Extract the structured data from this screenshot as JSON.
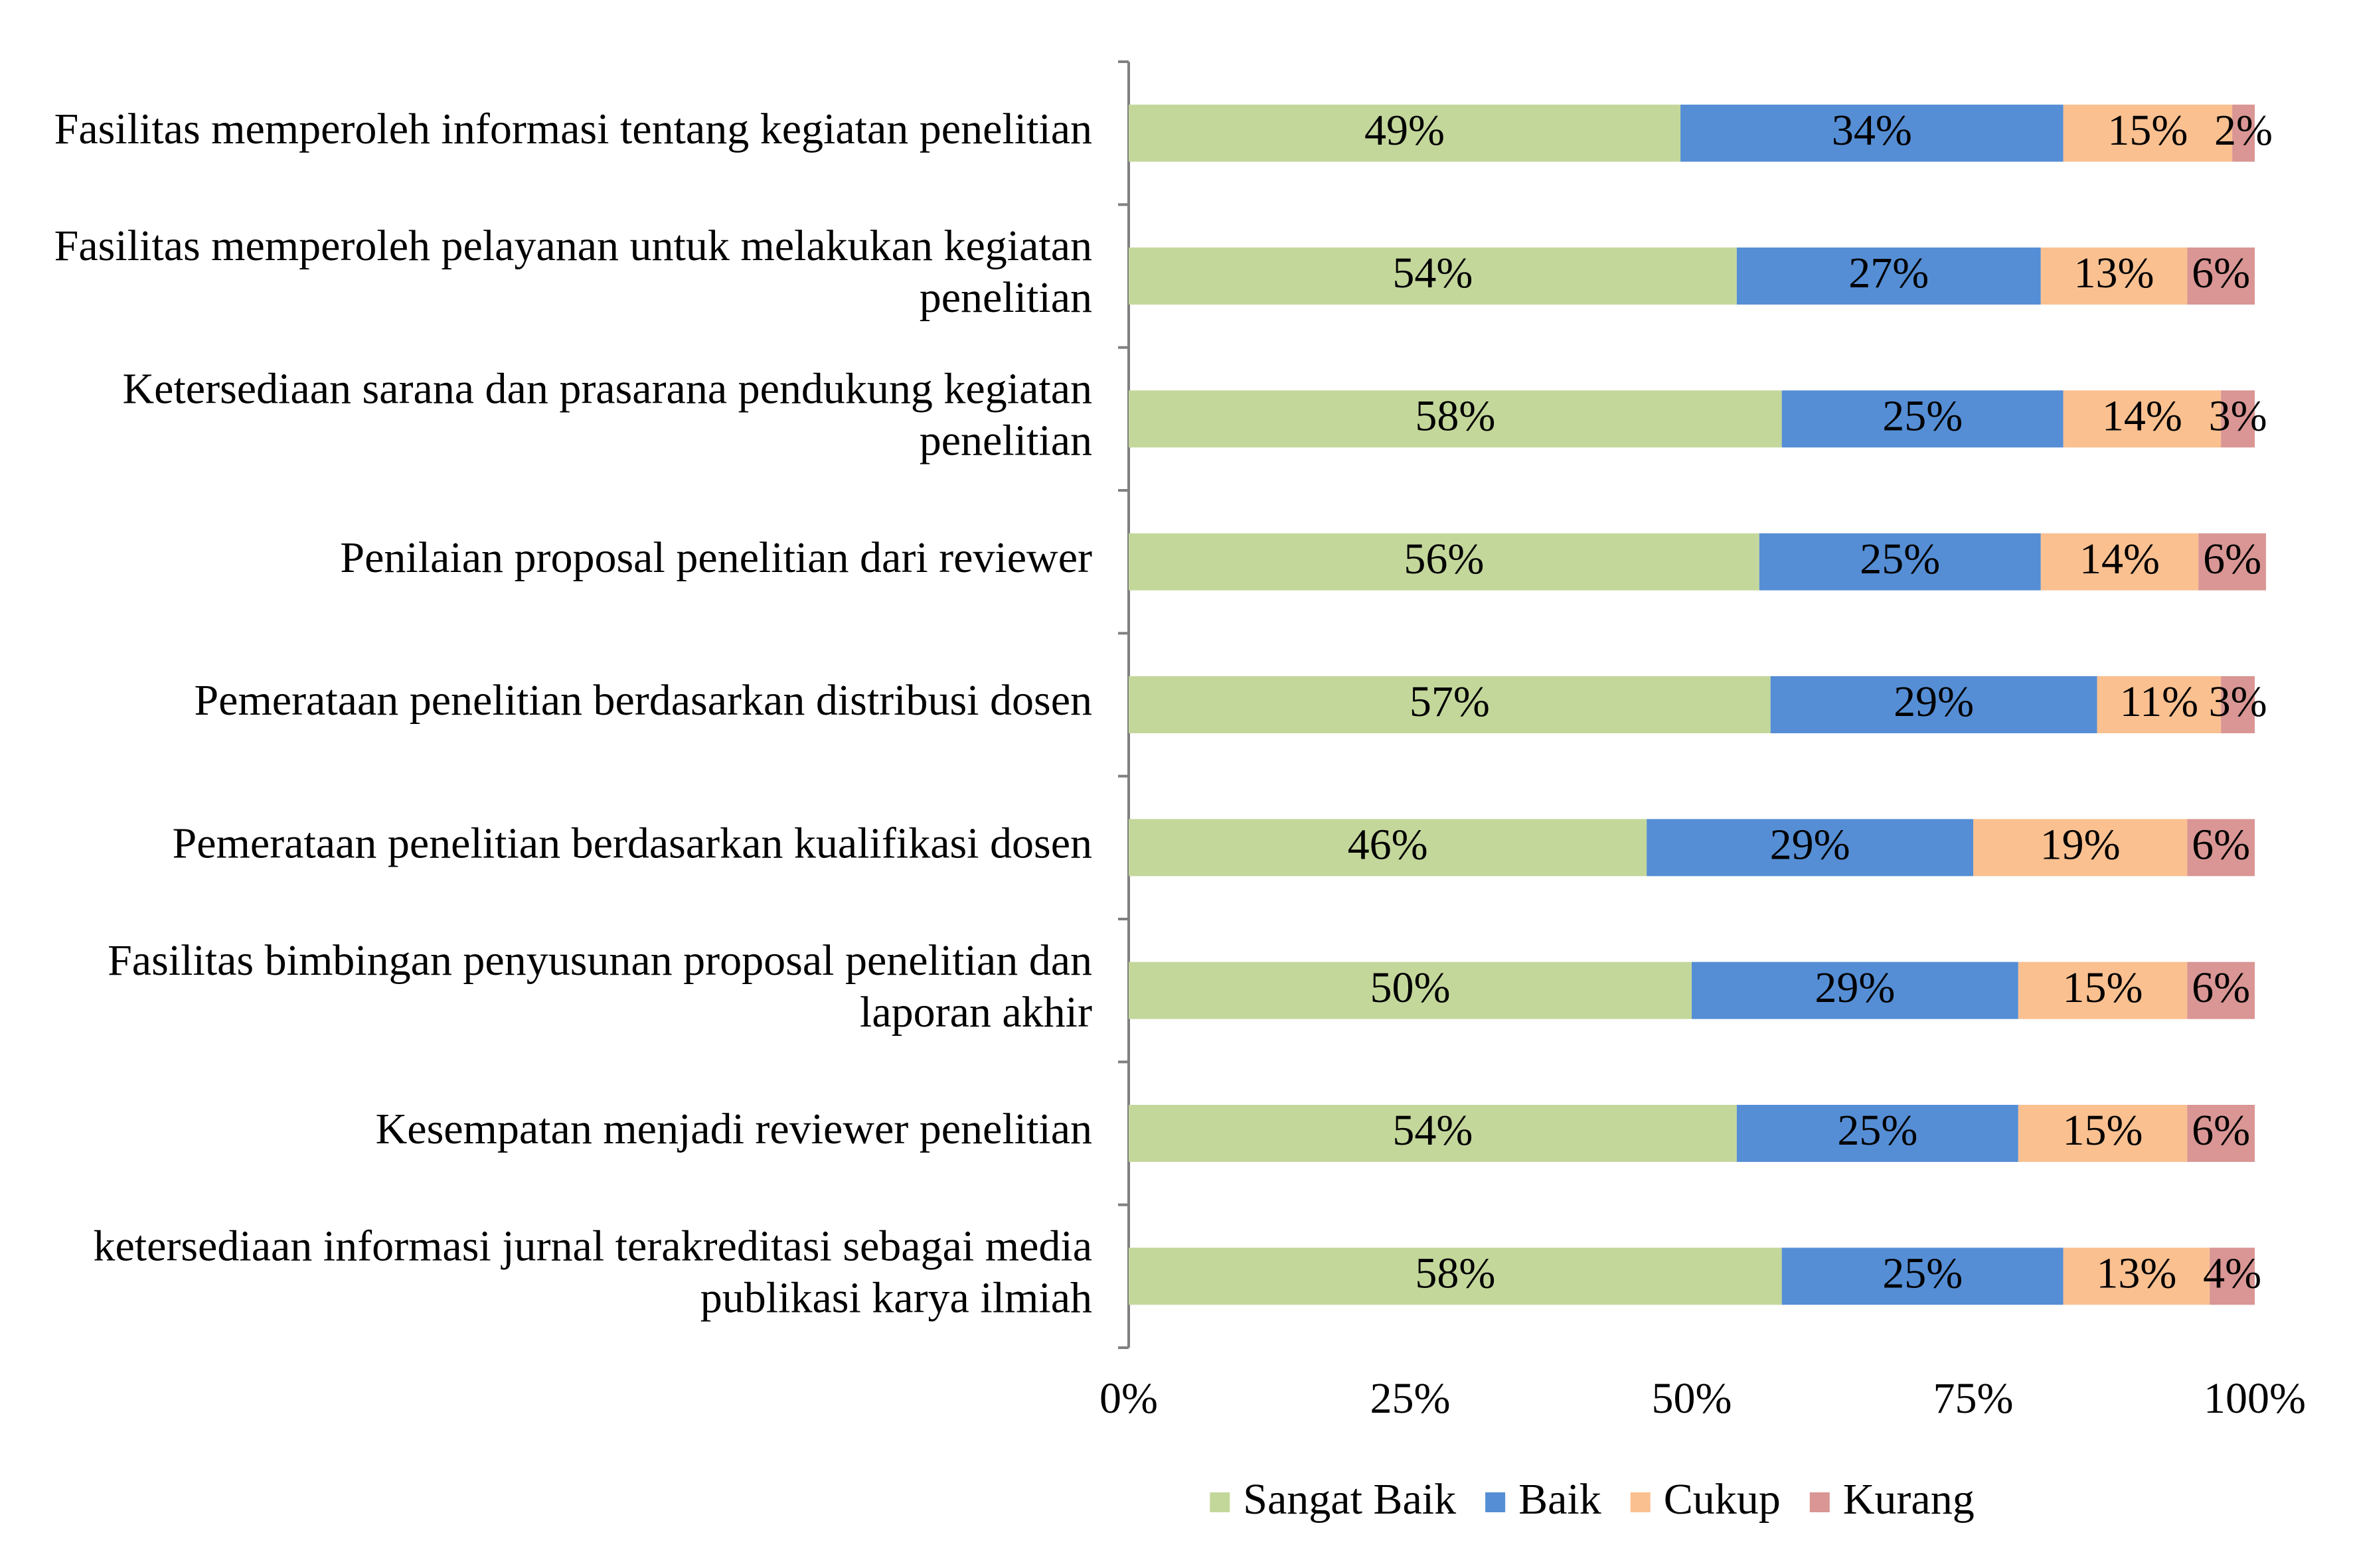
{
  "chart_data": {
    "type": "bar",
    "orientation": "horizontal",
    "stacked": "percent",
    "categories": [
      [
        "Fasilitas memperoleh informasi tentang kegiatan penelitian"
      ],
      [
        "Fasilitas memperoleh pelayanan untuk melakukan kegiatan",
        "penelitian"
      ],
      [
        "Ketersediaan sarana dan prasarana pendukung kegiatan",
        "penelitian"
      ],
      [
        "Penilaian proposal penelitian dari reviewer"
      ],
      [
        "Pemerataan penelitian berdasarkan distribusi dosen"
      ],
      [
        "Pemerataan penelitian berdasarkan kualifikasi dosen"
      ],
      [
        "Fasilitas bimbingan penyusunan proposal penelitian dan",
        "laporan akhir"
      ],
      [
        "Kesempatan menjadi reviewer penelitian"
      ],
      [
        "ketersediaan informasi jurnal terakreditasi sebagai media",
        "publikasi karya ilmiah"
      ]
    ],
    "series": [
      {
        "name": "Sangat Baik",
        "color": "#c4d79b",
        "values": [
          49,
          54,
          58,
          56,
          57,
          46,
          50,
          54,
          58
        ]
      },
      {
        "name": "Baik",
        "color": "#558ed5",
        "values": [
          34,
          27,
          25,
          25,
          29,
          29,
          29,
          25,
          25
        ]
      },
      {
        "name": "Cukup",
        "color": "#fac090",
        "values": [
          15,
          13,
          14,
          14,
          11,
          19,
          15,
          15,
          13
        ]
      },
      {
        "name": "Kurang",
        "color": "#d99694",
        "values": [
          2,
          6,
          3,
          6,
          3,
          6,
          6,
          6,
          4
        ]
      }
    ],
    "xticks": [
      "0%",
      "25%",
      "50%",
      "75%",
      "100%"
    ],
    "xlim": [
      0,
      100
    ],
    "value_suffix": "%",
    "legend_position": "bottom",
    "grid": false
  }
}
